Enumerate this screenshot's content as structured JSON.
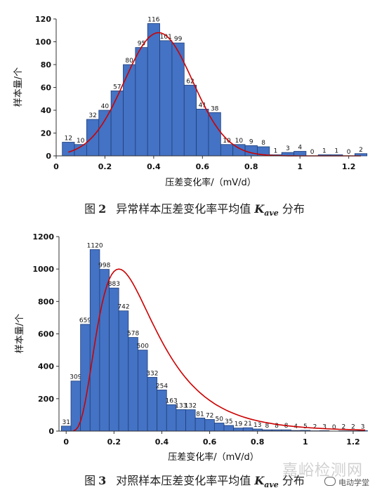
{
  "captions": {
    "fig2": {
      "label": "图",
      "number": "2",
      "text_before": "异常样本压差变化率平均值",
      "symbol": "K",
      "subscript": "ave",
      "text_after": "分布"
    },
    "fig3": {
      "label": "图",
      "number": "3",
      "text_before": "对照样本压差变化率平均值",
      "symbol": "K",
      "subscript": "ave",
      "text_after": "分布"
    }
  },
  "watermark": {
    "text": "嘉峪检测网"
  },
  "badge": {
    "text": "电动学堂",
    "icon": "wechat-icon"
  },
  "colors": {
    "bar_fill": "#4472C4",
    "bar_stroke": "#1F3F7A",
    "curve": "#CC0000",
    "axis": "#333333"
  },
  "chart_data": [
    {
      "type": "bar",
      "title": "",
      "xlabel": "压差变化率/（mV/d）",
      "ylabel": "样本量/个",
      "xlim": [
        0,
        1.25
      ],
      "ylim": [
        0,
        120
      ],
      "x_ticks": [
        0,
        0.2,
        0.4,
        0.6,
        0.8,
        1,
        1.2
      ],
      "x_tick_labels": [
        "0",
        "0.2",
        "0.4",
        "0.6",
        "0.8",
        "1",
        "1.2"
      ],
      "y_ticks": [
        0,
        20,
        40,
        60,
        80,
        100,
        120
      ],
      "y_tick_labels": [
        "0",
        "20",
        "40",
        "60",
        "80",
        "100",
        "120"
      ],
      "bin_width": 0.05,
      "bin_starts": [
        0.025,
        0.075,
        0.125,
        0.175,
        0.225,
        0.275,
        0.325,
        0.375,
        0.425,
        0.475,
        0.525,
        0.575,
        0.625,
        0.675,
        0.725,
        0.775,
        0.825,
        0.875,
        0.925,
        0.975,
        1.025,
        1.075,
        1.125,
        1.175,
        1.225
      ],
      "values": [
        12,
        10,
        32,
        40,
        57,
        80,
        95,
        116,
        101,
        99,
        62,
        41,
        38,
        10,
        10,
        9,
        8,
        1,
        3,
        4,
        0,
        1,
        1,
        0,
        2
      ],
      "data_labels": [
        "12",
        "10",
        "32",
        "40",
        "57",
        "80",
        "95",
        "116",
        "101",
        "99",
        "62",
        "41",
        "38",
        "10",
        "10",
        "9",
        "8",
        "1",
        "3",
        "4",
        "0",
        "1",
        "1",
        "0",
        "2"
      ],
      "fit_curve": {
        "type": "normal",
        "peak": 108,
        "mean": 0.42,
        "sd": 0.14,
        "x_range": [
          0.05,
          1.25
        ]
      },
      "grid": false
    },
    {
      "type": "bar",
      "title": "",
      "xlabel": "压差变化率/（mV/d）",
      "ylabel": "样本量/个",
      "xlim": [
        -0.03,
        1.25
      ],
      "ylim": [
        0,
        1200
      ],
      "x_ticks": [
        0,
        0.2,
        0.4,
        0.6,
        0.8,
        1,
        1.2
      ],
      "x_tick_labels": [
        "0",
        "0.2",
        "0.4",
        "0.6",
        "0.8",
        "1",
        "1.2"
      ],
      "y_ticks": [
        0,
        200,
        400,
        600,
        800,
        1000,
        1200
      ],
      "y_tick_labels": [
        "0",
        "200",
        "400",
        "600",
        "800",
        "1000",
        "1200"
      ],
      "bin_width": 0.04,
      "bin_starts": [
        -0.02,
        0.02,
        0.06,
        0.1,
        0.14,
        0.18,
        0.22,
        0.26,
        0.3,
        0.34,
        0.38,
        0.42,
        0.46,
        0.5,
        0.54,
        0.58,
        0.62,
        0.66,
        0.7,
        0.74,
        0.78,
        0.82,
        0.86,
        0.9,
        0.94,
        0.98,
        1.02,
        1.06,
        1.1,
        1.14,
        1.18,
        1.22
      ],
      "values": [
        31,
        309,
        659,
        1120,
        998,
        883,
        742,
        578,
        500,
        332,
        254,
        163,
        133,
        132,
        81,
        72,
        50,
        35,
        19,
        21,
        13,
        8,
        8,
        8,
        4,
        5,
        2,
        3,
        0,
        2,
        2,
        3
      ],
      "data_labels": [
        "31",
        "309",
        "659",
        "1120",
        "998",
        "883",
        "742",
        "578",
        "500",
        "332",
        "254",
        "163",
        "133",
        "132",
        "81",
        "72",
        "50",
        "35",
        "19",
        "21",
        "13",
        "8",
        "8",
        "8",
        "4",
        "5",
        "2",
        "3",
        "0",
        "2",
        "2",
        "3"
      ],
      "fit_curve": {
        "type": "lognormal",
        "peak": 1000,
        "mode": 0.22,
        "sigma": 0.55,
        "x_range": [
          0.03,
          1.25
        ]
      },
      "grid": false
    }
  ]
}
